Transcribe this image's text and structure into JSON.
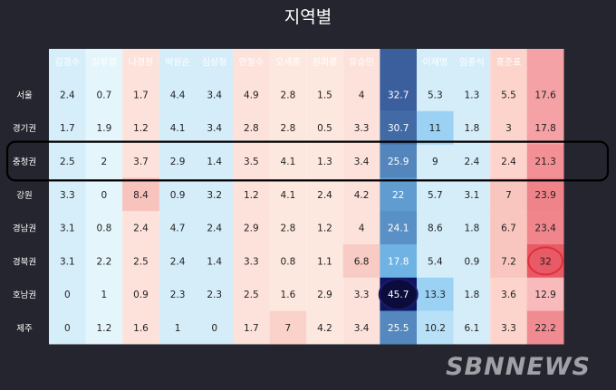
{
  "chart_data": {
    "type": "heatmap",
    "title": "지역별",
    "candidates": [
      "김경수",
      "김부겸",
      "나경원",
      "박원순",
      "심상정",
      "안철수",
      "오세훈",
      "원희룡",
      "유승민",
      "이낙연",
      "이재명",
      "임종석",
      "홍준표",
      "황교안"
    ],
    "regions": [
      "서울",
      "경기권",
      "충청권",
      "강원",
      "경남권",
      "경북권",
      "호남권",
      "제주"
    ],
    "values": [
      [
        2.4,
        0.7,
        1.7,
        4.4,
        3.4,
        4.9,
        2.8,
        1.5,
        4,
        32.7,
        5.3,
        1.3,
        5.5,
        17.6
      ],
      [
        1.7,
        1.9,
        1.2,
        4.1,
        3.4,
        2.8,
        2.8,
        0.5,
        3.3,
        30.7,
        11,
        1.8,
        3,
        17.8
      ],
      [
        2.5,
        2,
        3.7,
        2.9,
        1.4,
        3.5,
        4.1,
        1.3,
        3.4,
        25.9,
        9,
        2.4,
        2.4,
        21.3
      ],
      [
        3.3,
        0,
        8.4,
        0.9,
        3.2,
        1.2,
        4.1,
        2.4,
        4.2,
        22,
        5.7,
        3.1,
        7,
        23.9
      ],
      [
        3.1,
        0.8,
        2.4,
        4.7,
        2.4,
        2.9,
        2.8,
        1.2,
        4,
        24.1,
        8.6,
        1.8,
        6.7,
        23.4
      ],
      [
        3.1,
        2.2,
        2.5,
        2.4,
        1.4,
        3.3,
        0.8,
        1.1,
        6.8,
        17.8,
        5.4,
        0.9,
        7.2,
        32
      ],
      [
        0,
        1,
        0.9,
        2.3,
        2.3,
        2.5,
        1.6,
        2.9,
        3.3,
        45.7,
        13.3,
        1.8,
        3.6,
        12.9
      ],
      [
        0,
        1.2,
        1.6,
        1,
        0,
        1.7,
        7,
        4.2,
        3.4,
        25.5,
        10.2,
        6.1,
        3.3,
        22.2
      ]
    ],
    "candidate_colors": {
      "김경수": "#d6eefa",
      "김부겸": "#e4f5fb",
      "나경원": "#fde2dc",
      "박원순": "#d4edf9",
      "심상정": "#d4edf9",
      "안철수": "#fde2dc",
      "오세훈": "#fde8e0",
      "원희룡": "#fde8e0",
      "유승민": "#fde2dc",
      "이낙연": "#4da8df",
      "이재명": "#d4edf9",
      "임종석": "#d4edf9",
      "홍준표": "#fcd4cc",
      "황교안": "#f4a3a6"
    },
    "highlight_row": "충청권",
    "highlight_circles": [
      {
        "region": "호남권",
        "candidate": "이낙연",
        "color": "#1a1a6e"
      },
      {
        "region": "경북권",
        "candidate": "황교안",
        "color": "#e0303a"
      }
    ],
    "legend": "none",
    "grid": false
  },
  "watermark": "SBNNEWS"
}
